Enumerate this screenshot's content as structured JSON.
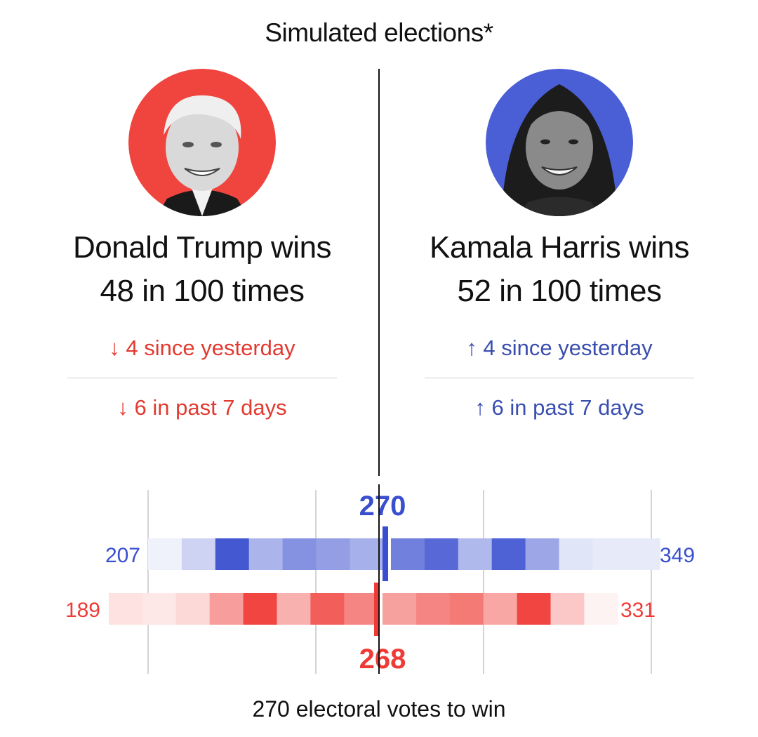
{
  "title": "Simulated elections*",
  "candidates": {
    "trump": {
      "wins_line": "Donald Trump wins",
      "odds_line": "48 in 100 times",
      "change_day": "↓ 4 since yesterday",
      "change_week": "↓ 6 in past 7 days",
      "color": "#e43a32",
      "ring_color": "#f0443e"
    },
    "harris": {
      "wins_line": "Kamala Harris wins",
      "odds_line": "52 in 100 times",
      "change_day": "↑ 4 since yesterday",
      "change_week": "↑ 6 in past 7 days",
      "color": "#3a4eb0",
      "ring_color": "#4a5fd6"
    }
  },
  "chart_data": {
    "type": "heatmap",
    "title": "Simulated elections*",
    "xlabel": "270 electoral votes to win",
    "threshold": 270,
    "series": [
      {
        "name": "Harris",
        "color": "#3a4fd0",
        "median": 270,
        "min": 207,
        "max": 349,
        "median_label": "270",
        "min_label": "207",
        "max_label": "349",
        "intensities": [
          0.08,
          0.25,
          0.95,
          0.42,
          0.62,
          0.55,
          0.45,
          0.72,
          0.85,
          0.4,
          0.9,
          0.5,
          0.15,
          0.12,
          0.12
        ]
      },
      {
        "name": "Trump",
        "color": "#ef3b36",
        "median": 268,
        "min": 189,
        "max": 331,
        "median_label": "268",
        "min_label": "189",
        "max_label": "331",
        "intensities": [
          0.15,
          0.12,
          0.2,
          0.5,
          0.95,
          0.4,
          0.82,
          0.62,
          0.48,
          0.62,
          0.68,
          0.45,
          0.95,
          0.28,
          0.06
        ]
      }
    ]
  },
  "footer": "270 electoral votes to win"
}
